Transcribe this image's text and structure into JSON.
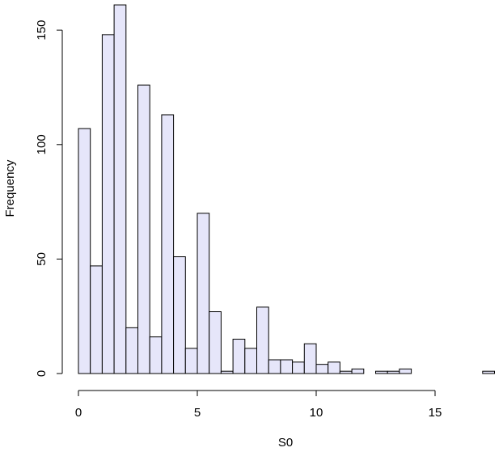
{
  "chart_data": {
    "type": "bar",
    "title": "",
    "xlabel": "S0",
    "ylabel": "Frequency",
    "bin_width": 0.5,
    "bin_start": 0,
    "counts": [
      107,
      47,
      148,
      161,
      20,
      126,
      16,
      113,
      51,
      11,
      70,
      27,
      1,
      15,
      11,
      29,
      6,
      6,
      5,
      13,
      4,
      5,
      1,
      2,
      0,
      1,
      1,
      2,
      0,
      0,
      0,
      0,
      0,
      0,
      1
    ],
    "xlim": [
      0,
      17.5
    ],
    "ylim": [
      0,
      161
    ],
    "x_ticks": [
      0,
      5,
      10,
      15
    ],
    "x_tick_labels": [
      "0",
      "5",
      "10",
      "15"
    ],
    "y_ticks": [
      0,
      50,
      100,
      150
    ],
    "y_tick_labels": [
      "0",
      "50",
      "100",
      "150"
    ],
    "grid": false,
    "bar_fill": "#e6e6fa",
    "bar_stroke": "#000000"
  }
}
